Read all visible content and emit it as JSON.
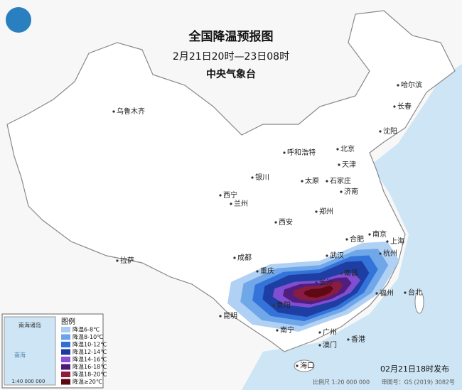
{
  "header": {
    "title": "全国降温预报图",
    "subtitle": "2月21日20时—23日08时",
    "agency": "中央气象台"
  },
  "cities": [
    "乌鲁木齐",
    "哈尔滨",
    "长春",
    "沈阳",
    "呼和浩特",
    "北京",
    "天津",
    "石家庄",
    "太原",
    "济南",
    "银川",
    "西宁",
    "兰州",
    "郑州",
    "西安",
    "合肥",
    "南京",
    "上海",
    "杭州",
    "武汉",
    "成都",
    "拉萨",
    "重庆",
    "南昌",
    "长沙",
    "贵阳",
    "福州",
    "台北",
    "昆明",
    "南宁",
    "广州",
    "澳门",
    "香港",
    "海口"
  ],
  "legend": {
    "title": "图例",
    "items": [
      {
        "label": "降温6-8℃",
        "color": "#a9cdf2"
      },
      {
        "label": "降温8-10℃",
        "color": "#6aa3e8"
      },
      {
        "label": "降温10-12℃",
        "color": "#2f6fd8"
      },
      {
        "label": "降温12-14℃",
        "color": "#1c3a9e"
      },
      {
        "label": "降温14-16℃",
        "color": "#8a4fd6"
      },
      {
        "label": "降温16-18℃",
        "color": "#4d1a78"
      },
      {
        "label": "降温18-20℃",
        "color": "#8e1c3c"
      },
      {
        "label": "降温≥20℃",
        "color": "#5a0810"
      }
    ]
  },
  "inset": {
    "label": "南海诸岛",
    "scale": "1:40 000 000",
    "sea": "南海"
  },
  "footer": {
    "issued": "02月21日18时发布",
    "scale": "比例尺 1:20 000 000",
    "approval": "审图号：GS (2019) 3082号"
  }
}
